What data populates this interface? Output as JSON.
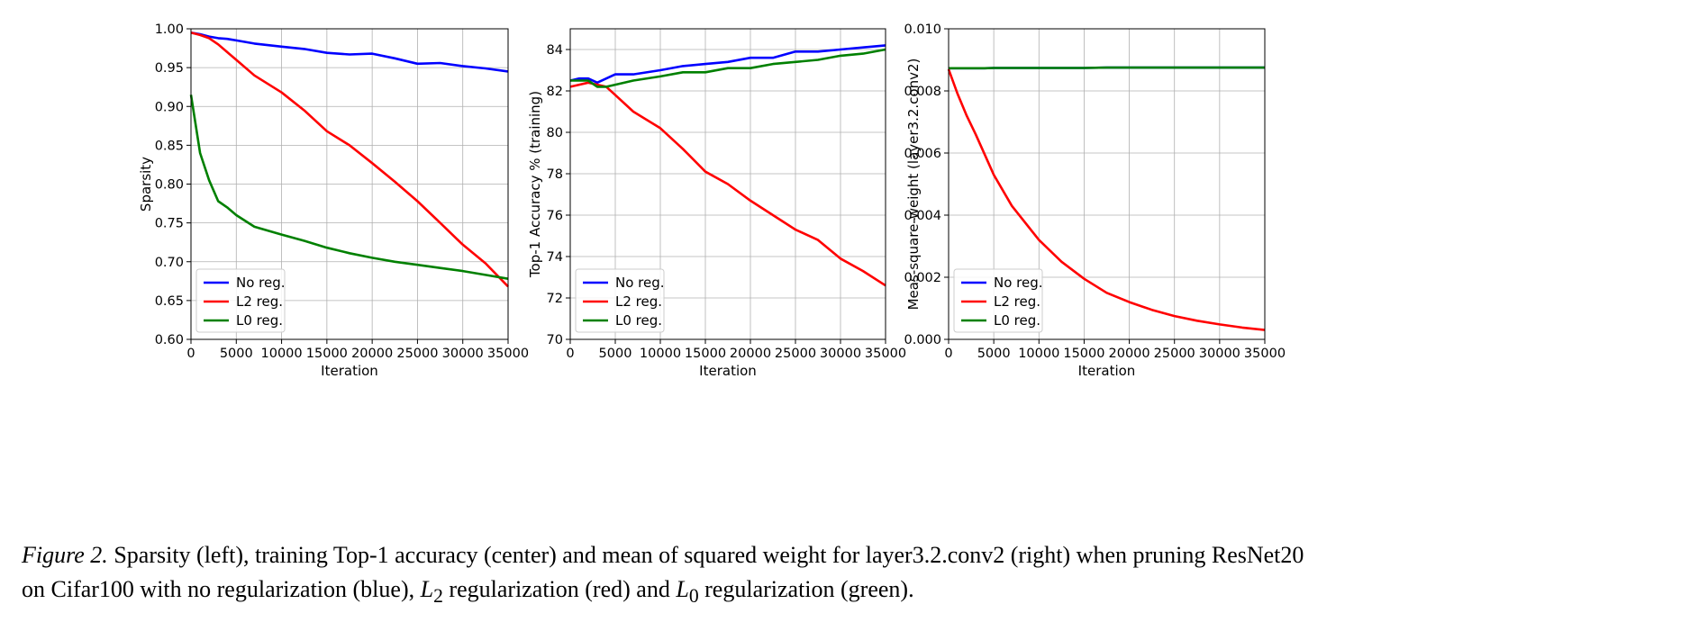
{
  "chart_data": [
    {
      "type": "line",
      "xlabel": "Iteration",
      "ylabel": "Sparsity",
      "xlim": [
        0,
        35000
      ],
      "ylim": [
        0.6,
        1.0
      ],
      "xticks": [
        "0",
        "5000",
        "10000",
        "15000",
        "20000",
        "25000",
        "30000",
        "35000"
      ],
      "yticks": [
        "0.60",
        "0.65",
        "0.70",
        "0.75",
        "0.80",
        "0.85",
        "0.90",
        "0.95",
        "1.00"
      ],
      "grid": true,
      "legend_position": "lower-left",
      "x": [
        0,
        1000,
        2000,
        3000,
        4000,
        5000,
        7000,
        10000,
        12500,
        15000,
        17500,
        20000,
        22500,
        25000,
        27500,
        30000,
        32500,
        35000
      ],
      "series": [
        {
          "name": "No reg.",
          "color": "#0000ff",
          "values": [
            0.995,
            0.993,
            0.99,
            0.988,
            0.987,
            0.985,
            0.981,
            0.977,
            0.974,
            0.969,
            0.967,
            0.968,
            0.962,
            0.955,
            0.956,
            0.952,
            0.949,
            0.945
          ]
        },
        {
          "name": "L2 reg.",
          "color": "#ff0000",
          "values": [
            0.995,
            0.992,
            0.988,
            0.98,
            0.97,
            0.96,
            0.94,
            0.918,
            0.895,
            0.868,
            0.85,
            0.827,
            0.803,
            0.778,
            0.75,
            0.722,
            0.698,
            0.668
          ]
        },
        {
          "name": "L0 reg.",
          "color": "#008000",
          "values": [
            0.915,
            0.84,
            0.805,
            0.778,
            0.77,
            0.76,
            0.745,
            0.735,
            0.727,
            0.718,
            0.711,
            0.705,
            0.7,
            0.696,
            0.692,
            0.688,
            0.683,
            0.678
          ]
        }
      ]
    },
    {
      "type": "line",
      "xlabel": "Iteration",
      "ylabel": "Top-1 Accuracy % (training)",
      "xlim": [
        0,
        35000
      ],
      "ylim": [
        70,
        85
      ],
      "xticks": [
        "0",
        "5000",
        "10000",
        "15000",
        "20000",
        "25000",
        "30000",
        "35000"
      ],
      "yticks": [
        "70",
        "72",
        "74",
        "76",
        "78",
        "80",
        "82",
        "84"
      ],
      "grid": true,
      "legend_position": "lower-left",
      "x": [
        0,
        1000,
        2000,
        3000,
        4000,
        5000,
        7000,
        10000,
        12500,
        15000,
        17500,
        20000,
        22500,
        25000,
        27500,
        30000,
        32500,
        35000
      ],
      "series": [
        {
          "name": "No reg.",
          "color": "#0000ff",
          "values": [
            82.5,
            82.6,
            82.6,
            82.4,
            82.6,
            82.8,
            82.8,
            83.0,
            83.2,
            83.3,
            83.4,
            83.6,
            83.6,
            83.9,
            83.9,
            84.0,
            84.1,
            84.2
          ]
        },
        {
          "name": "L2 reg.",
          "color": "#ff0000",
          "values": [
            82.2,
            82.3,
            82.4,
            82.3,
            82.2,
            81.8,
            81.0,
            80.2,
            79.2,
            78.1,
            77.5,
            76.7,
            76.0,
            75.3,
            74.8,
            73.9,
            73.3,
            72.6
          ]
        },
        {
          "name": "L0 reg.",
          "color": "#008000",
          "values": [
            82.5,
            82.5,
            82.5,
            82.2,
            82.2,
            82.3,
            82.5,
            82.7,
            82.9,
            82.9,
            83.1,
            83.1,
            83.3,
            83.4,
            83.5,
            83.7,
            83.8,
            84.0
          ]
        }
      ]
    },
    {
      "type": "line",
      "xlabel": "Iteration",
      "ylabel": "Meas-square-weight (layer3.2.conv2)",
      "xlim": [
        0,
        35000
      ],
      "ylim": [
        0.0,
        0.01
      ],
      "xticks": [
        "0",
        "5000",
        "10000",
        "15000",
        "20000",
        "25000",
        "30000",
        "35000"
      ],
      "yticks": [
        "0.000",
        "0.002",
        "0.004",
        "0.006",
        "0.008",
        "0.010"
      ],
      "grid": true,
      "legend_position": "lower-left",
      "x": [
        0,
        500,
        1000,
        2000,
        3000,
        4000,
        5000,
        7000,
        10000,
        12500,
        15000,
        17500,
        20000,
        22500,
        25000,
        27500,
        30000,
        32500,
        35000
      ],
      "series": [
        {
          "name": "No reg.",
          "color": "#0000ff",
          "values": [
            0.00873,
            0.00873,
            0.00873,
            0.00873,
            0.00873,
            0.00873,
            0.00874,
            0.00874,
            0.00874,
            0.00874,
            0.00874,
            0.00875,
            0.00875,
            0.00875,
            0.00875,
            0.00875,
            0.00875,
            0.00875,
            0.00875
          ]
        },
        {
          "name": "L2 reg.",
          "color": "#ff0000",
          "values": [
            0.0087,
            0.0083,
            0.0079,
            0.0072,
            0.0066,
            0.00595,
            0.0053,
            0.0043,
            0.0032,
            0.0025,
            0.00195,
            0.0015,
            0.0012,
            0.00095,
            0.00075,
            0.0006,
            0.00048,
            0.00038,
            0.0003
          ]
        },
        {
          "name": "L0 reg.",
          "color": "#008000",
          "values": [
            0.00873,
            0.00873,
            0.00873,
            0.00873,
            0.00873,
            0.00873,
            0.00874,
            0.00874,
            0.00874,
            0.00874,
            0.00874,
            0.00875,
            0.00875,
            0.00875,
            0.00875,
            0.00875,
            0.00875,
            0.00875,
            0.00875
          ]
        }
      ]
    }
  ],
  "caption": {
    "label": "Figure 2.",
    "line1": " Sparsity (left), training Top-1 accuracy (center) and mean of squared weight for layer3.2.conv2 (right) when pruning ResNet20",
    "line2_a": "on Cifar100 with no regularization (blue), ",
    "l2_symbol": "L",
    "l2_sub": "2",
    "line2_b": " regularization (red) and ",
    "l0_symbol": "L",
    "l0_sub": "0",
    "line2_c": " regularization (green)."
  }
}
